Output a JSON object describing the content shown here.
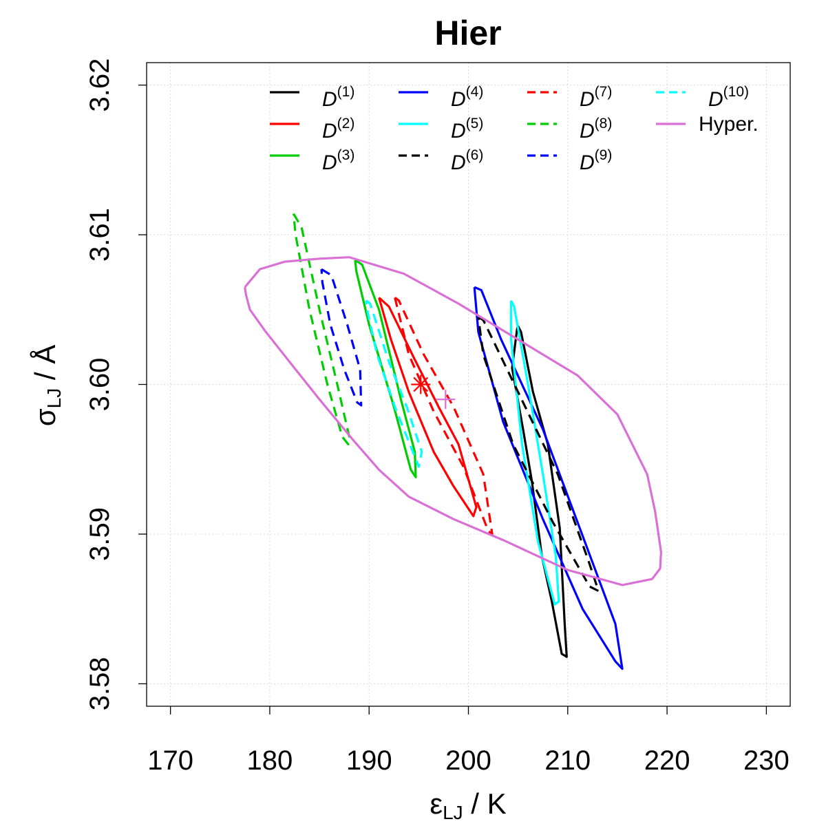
{
  "chart_data": {
    "type": "contour",
    "title": "Hier",
    "xlabel": {
      "main": "ε",
      "sub": "LJ",
      "unit": " / K"
    },
    "ylabel": {
      "main": "σ",
      "sub": "LJ",
      "unit": " / Å"
    },
    "xlim": [
      167.6,
      232.4
    ],
    "ylim": [
      3.5785,
      3.6215
    ],
    "xticks": [
      170,
      180,
      190,
      200,
      210,
      220,
      230
    ],
    "xtick_labels": [
      "170",
      "180",
      "190",
      "200",
      "210",
      "220",
      "230"
    ],
    "yticks": [
      3.58,
      3.59,
      3.6,
      3.61,
      3.62
    ],
    "ytick_labels": [
      "3.58",
      "3.59",
      "3.60",
      "3.61",
      "3.62"
    ],
    "grid": true,
    "legend_position": "top",
    "series": [
      {
        "name": "D",
        "sup": "(1)",
        "color": "#000000",
        "dash": "solid",
        "contour": [
          [
            205.0,
            3.6039
          ],
          [
            204.9,
            3.6037
          ],
          [
            204.4,
            3.6011
          ],
          [
            205.5,
            3.597
          ],
          [
            206.4,
            3.5935
          ],
          [
            207.4,
            3.5885
          ],
          [
            208.4,
            3.5855
          ],
          [
            209.4,
            3.582
          ],
          [
            209.9,
            3.5818
          ],
          [
            209.7,
            3.5839
          ],
          [
            209.2,
            3.5904
          ],
          [
            208.0,
            3.596
          ],
          [
            206.5,
            3.5995
          ],
          [
            205.3,
            3.6035
          ],
          [
            205.0,
            3.6039
          ]
        ]
      },
      {
        "name": "D",
        "sup": "(2)",
        "color": "#ff0000",
        "dash": "solid",
        "contour": [
          [
            191.0,
            3.6058
          ],
          [
            192.0,
            3.6052
          ],
          [
            194.5,
            3.6018
          ],
          [
            197.0,
            3.5985
          ],
          [
            199.0,
            3.596
          ],
          [
            200.8,
            3.5918
          ],
          [
            200.5,
            3.5912
          ],
          [
            198.5,
            3.5932
          ],
          [
            196.5,
            3.5955
          ],
          [
            194.0,
            3.5995
          ],
          [
            192.2,
            3.603
          ],
          [
            191.0,
            3.6058
          ]
        ]
      },
      {
        "name": "D",
        "sup": "(3)",
        "color": "#00cd00",
        "dash": "solid",
        "contour": [
          [
            188.6,
            3.6083
          ],
          [
            189.3,
            3.608
          ],
          [
            191.0,
            3.605
          ],
          [
            193.2,
            3.599
          ],
          [
            194.6,
            3.5955
          ],
          [
            194.7,
            3.5938
          ],
          [
            194.2,
            3.5943
          ],
          [
            192.5,
            3.5985
          ],
          [
            190.0,
            3.604
          ],
          [
            188.7,
            3.6076
          ],
          [
            188.6,
            3.6083
          ]
        ]
      },
      {
        "name": "D",
        "sup": "(4)",
        "color": "#0000ff",
        "dash": "solid",
        "contour": [
          [
            200.6,
            3.6065
          ],
          [
            201.3,
            3.6063
          ],
          [
            203.3,
            3.603
          ],
          [
            207.5,
            3.597
          ],
          [
            212.0,
            3.589
          ],
          [
            214.8,
            3.584
          ],
          [
            215.5,
            3.581
          ],
          [
            214.8,
            3.5815
          ],
          [
            211.5,
            3.585
          ],
          [
            207.5,
            3.591
          ],
          [
            203.5,
            3.5975
          ],
          [
            201.0,
            3.6035
          ],
          [
            200.6,
            3.6065
          ]
        ]
      },
      {
        "name": "D",
        "sup": "(5)",
        "color": "#00ffff",
        "dash": "solid",
        "contour": [
          [
            204.3,
            3.6056
          ],
          [
            204.6,
            3.6052
          ],
          [
            206.0,
            3.6
          ],
          [
            207.5,
            3.594
          ],
          [
            208.8,
            3.5885
          ],
          [
            209.1,
            3.5855
          ],
          [
            208.7,
            3.5853
          ],
          [
            207.0,
            3.5895
          ],
          [
            205.4,
            3.596
          ],
          [
            204.3,
            3.603
          ],
          [
            204.3,
            3.6056
          ]
        ]
      },
      {
        "name": "D",
        "sup": "(6)",
        "color": "#000000",
        "dash": "dashed",
        "contour": [
          [
            201.0,
            3.6045
          ],
          [
            201.5,
            3.6043
          ],
          [
            205.0,
            3.5995
          ],
          [
            209.0,
            3.594
          ],
          [
            212.2,
            3.588
          ],
          [
            213.1,
            3.5862
          ],
          [
            212.2,
            3.5865
          ],
          [
            208.5,
            3.5908
          ],
          [
            204.5,
            3.596
          ],
          [
            201.5,
            3.602
          ],
          [
            201.0,
            3.6045
          ]
        ]
      },
      {
        "name": "D",
        "sup": "(7)",
        "color": "#ff0000",
        "dash": "dashed",
        "contour": [
          [
            192.6,
            3.6058
          ],
          [
            193.0,
            3.6056
          ],
          [
            195.5,
            3.602
          ],
          [
            198.5,
            3.5985
          ],
          [
            201.5,
            3.594
          ],
          [
            202.4,
            3.59
          ],
          [
            202.0,
            3.5902
          ],
          [
            199.5,
            3.5945
          ],
          [
            196.5,
            3.5982
          ],
          [
            194.0,
            3.602
          ],
          [
            192.6,
            3.6058
          ]
        ]
      },
      {
        "name": "D",
        "sup": "(8)",
        "color": "#00cd00",
        "dash": "dashed",
        "contour": [
          [
            182.4,
            3.6114
          ],
          [
            183.2,
            3.6105
          ],
          [
            185.0,
            3.605
          ],
          [
            186.8,
            3.6
          ],
          [
            188.0,
            3.5965
          ],
          [
            187.9,
            3.596
          ],
          [
            187.3,
            3.5965
          ],
          [
            185.8,
            3.6
          ],
          [
            184.0,
            3.605
          ],
          [
            182.6,
            3.61
          ],
          [
            182.4,
            3.6114
          ]
        ]
      },
      {
        "name": "D",
        "sup": "(9)",
        "color": "#0000ff",
        "dash": "dashed",
        "contour": [
          [
            185.2,
            3.6077
          ],
          [
            186.2,
            3.6073
          ],
          [
            187.8,
            3.604
          ],
          [
            189.1,
            3.601
          ],
          [
            189.2,
            3.5986
          ],
          [
            188.8,
            3.5988
          ],
          [
            187.5,
            3.601
          ],
          [
            186.1,
            3.604
          ],
          [
            185.3,
            3.6068
          ],
          [
            185.2,
            3.6077
          ]
        ]
      },
      {
        "name": "D",
        "sup": "(10)",
        "color": "#00ffff",
        "dash": "dashed",
        "contour": [
          [
            189.7,
            3.6056
          ],
          [
            190.1,
            3.6054
          ],
          [
            192.0,
            3.6015
          ],
          [
            193.8,
            3.5985
          ],
          [
            195.3,
            3.5955
          ],
          [
            195.0,
            3.5945
          ],
          [
            194.4,
            3.5955
          ],
          [
            192.6,
            3.5985
          ],
          [
            190.8,
            3.602
          ],
          [
            189.8,
            3.605
          ],
          [
            189.7,
            3.6056
          ]
        ]
      },
      {
        "name": "Hyper.",
        "sup": "",
        "color": "#da70d6",
        "dash": "solid",
        "contour": [
          [
            177.5,
            3.6065
          ],
          [
            179.0,
            3.6077
          ],
          [
            181.5,
            3.6082
          ],
          [
            185.0,
            3.6084
          ],
          [
            188.0,
            3.6085
          ],
          [
            193.5,
            3.6074
          ],
          [
            199.0,
            3.6054
          ],
          [
            205.5,
            3.6028
          ],
          [
            211.0,
            3.6006
          ],
          [
            215.0,
            3.598
          ],
          [
            218.0,
            3.594
          ],
          [
            218.8,
            3.5915
          ],
          [
            219.4,
            3.5888
          ],
          [
            219.3,
            3.5877
          ],
          [
            218.5,
            3.587
          ],
          [
            215.5,
            3.5866
          ],
          [
            210.0,
            3.5876
          ],
          [
            203.5,
            3.5896
          ],
          [
            198.5,
            3.591
          ],
          [
            194.0,
            3.5925
          ],
          [
            191.0,
            3.5943
          ],
          [
            188.5,
            3.5962
          ],
          [
            185.0,
            3.599
          ],
          [
            182.0,
            3.6015
          ],
          [
            179.5,
            3.6036
          ],
          [
            178.0,
            3.605
          ],
          [
            177.6,
            3.606
          ],
          [
            177.5,
            3.6065
          ]
        ]
      }
    ],
    "markers": [
      {
        "label": "asterisk",
        "x": 195.2,
        "y": 3.6,
        "color": "#ff0000"
      },
      {
        "label": "plus",
        "x": 197.7,
        "y": 3.599,
        "color": "#da70d6"
      }
    ]
  }
}
